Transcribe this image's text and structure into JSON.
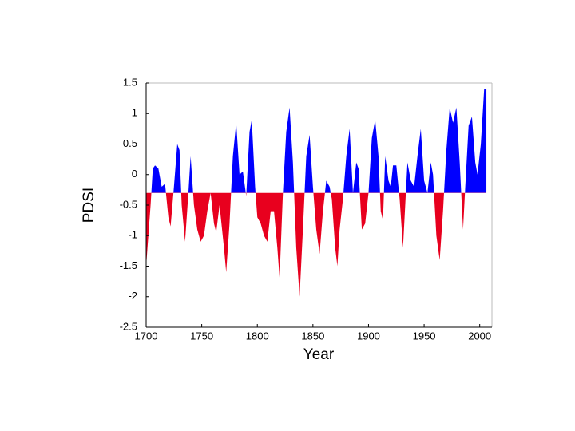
{
  "chart_data": {
    "type": "area",
    "x_label": "Year",
    "y_label": "PDSI",
    "xlim": [
      1700,
      2011
    ],
    "xticks": [
      1700,
      1750,
      1800,
      1850,
      1900,
      1950,
      2000
    ],
    "ylim": [
      -2.5,
      1.5
    ],
    "yticks": [
      1.5,
      1,
      0.5,
      0,
      -0.5,
      -1,
      -1.5,
      -2,
      -2.5
    ],
    "baseline": -0.3,
    "color_above": "#0000ff",
    "color_below": "#e8001e",
    "x": [
      1700,
      1702,
      1704,
      1706,
      1708,
      1711,
      1714,
      1717,
      1720,
      1722,
      1725,
      1728,
      1730,
      1732,
      1735,
      1738,
      1740,
      1743,
      1746,
      1749,
      1752,
      1755,
      1758,
      1761,
      1763,
      1766,
      1770,
      1772,
      1775,
      1778,
      1781,
      1784,
      1787,
      1790,
      1793,
      1795,
      1798,
      1800,
      1803,
      1806,
      1809,
      1812,
      1815,
      1818,
      1820,
      1823,
      1826,
      1829,
      1832,
      1835,
      1838,
      1841,
      1844,
      1847,
      1850,
      1853,
      1856,
      1859,
      1862,
      1865,
      1867,
      1870,
      1872,
      1874,
      1877,
      1880,
      1883,
      1886,
      1889,
      1891,
      1894,
      1897,
      1900,
      1903,
      1906,
      1909,
      1911,
      1913,
      1915,
      1918,
      1920,
      1922,
      1925,
      1928,
      1931,
      1933,
      1935,
      1938,
      1941,
      1944,
      1947,
      1950,
      1953,
      1956,
      1958,
      1961,
      1964,
      1967,
      1970,
      1973,
      1976,
      1979,
      1982,
      1985,
      1987,
      1990,
      1993,
      1996,
      1998,
      2001,
      2004,
      2006
    ],
    "values": [
      -1.5,
      -1.0,
      -0.5,
      0.1,
      0.15,
      0.1,
      -0.2,
      -0.15,
      -0.7,
      -0.85,
      -0.2,
      0.5,
      0.4,
      -0.5,
      -1.1,
      -0.3,
      0.3,
      -0.5,
      -0.9,
      -1.1,
      -1.0,
      -0.6,
      -0.3,
      -0.8,
      -0.95,
      -0.5,
      -1.2,
      -1.6,
      -0.8,
      0.3,
      0.85,
      0.0,
      0.05,
      -0.35,
      0.7,
      0.9,
      -0.2,
      -0.7,
      -0.8,
      -1.0,
      -1.1,
      -0.6,
      -0.6,
      -1.2,
      -1.7,
      -0.3,
      0.7,
      1.1,
      0.2,
      -1.2,
      -2.0,
      -0.9,
      0.3,
      0.65,
      -0.2,
      -0.9,
      -1.3,
      -0.6,
      -0.1,
      -0.2,
      -0.4,
      -1.2,
      -1.5,
      -0.9,
      -0.4,
      0.3,
      0.75,
      -0.3,
      0.2,
      0.1,
      -0.9,
      -0.8,
      -0.3,
      0.6,
      0.9,
      0.3,
      -0.6,
      -0.75,
      0.3,
      -0.1,
      -0.2,
      0.15,
      0.15,
      -0.4,
      -1.2,
      -0.5,
      0.2,
      -0.1,
      -0.2,
      0.3,
      0.75,
      -0.1,
      -0.3,
      0.2,
      0.0,
      -1.0,
      -1.4,
      -0.6,
      0.4,
      1.1,
      0.85,
      1.1,
      0.2,
      -0.9,
      -0.2,
      0.8,
      0.95,
      0.2,
      0.0,
      0.5,
      1.4,
      1.4
    ]
  }
}
